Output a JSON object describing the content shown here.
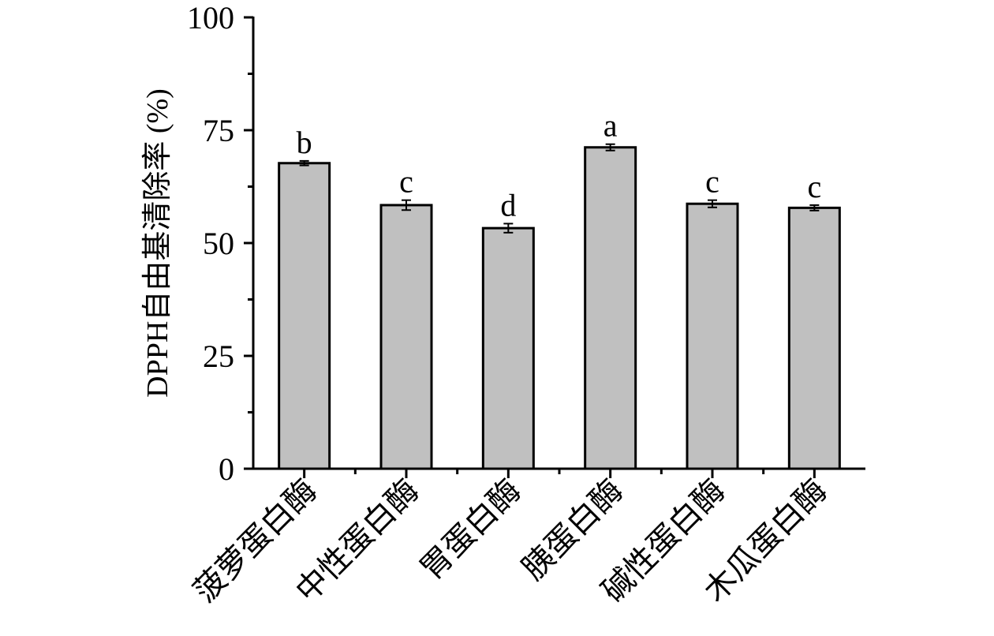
{
  "chart_data": {
    "type": "bar",
    "title": "",
    "xlabel": "",
    "ylabel": "DPPH自由基清除率 (%)",
    "ylim": [
      0,
      100
    ],
    "yticks": [
      0,
      25,
      50,
      75,
      100
    ],
    "grid": false,
    "categories": [
      "菠萝蛋白酶",
      "中性蛋白酶",
      "胃蛋白酶",
      "胰蛋白酶",
      "碱性蛋白酶",
      "木瓜蛋白酶"
    ],
    "series": [
      {
        "values": [
          67.7,
          58.4,
          53.3,
          71.2,
          58.7,
          57.8
        ],
        "errors": [
          0.5,
          1.1,
          1.0,
          0.7,
          0.8,
          0.6
        ],
        "significance": [
          "b",
          "c",
          "d",
          "a",
          "c",
          "c"
        ]
      }
    ],
    "colors": {
      "bar_fill": "#c0c0c0",
      "bar_stroke": "#000000",
      "axis": "#000000"
    }
  }
}
